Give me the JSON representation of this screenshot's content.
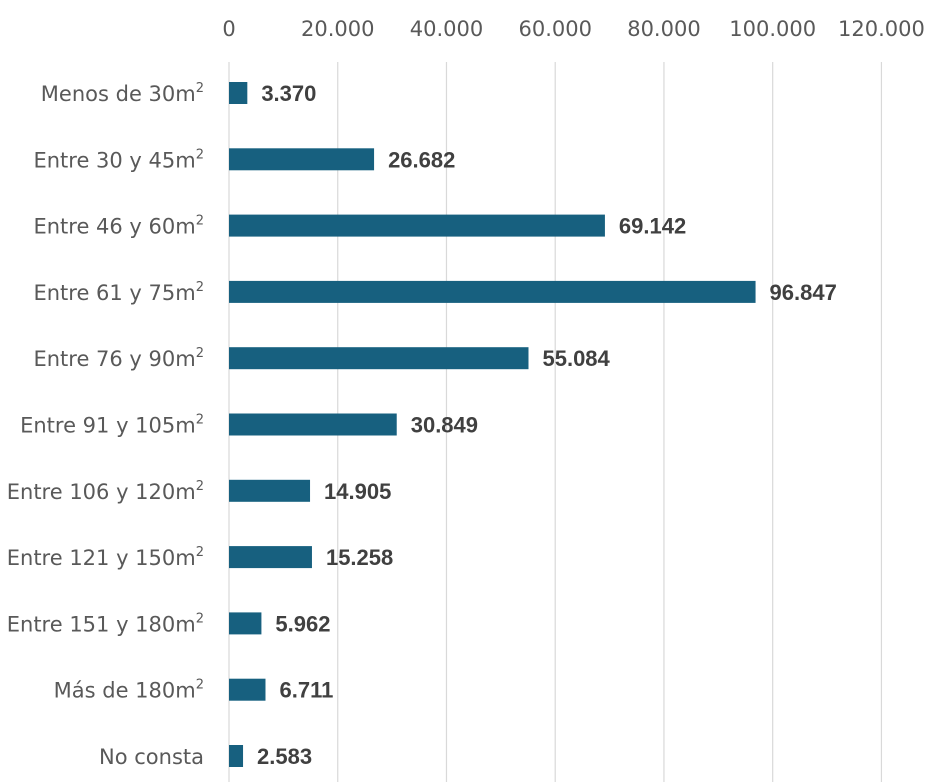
{
  "chart_data": {
    "type": "bar",
    "orientation": "horizontal",
    "categories": [
      {
        "label": "Menos de 30m",
        "sup": "2"
      },
      {
        "label": "Entre 30 y 45m",
        "sup": "2"
      },
      {
        "label": "Entre 46 y 60m",
        "sup": "2"
      },
      {
        "label": "Entre 61 y 75m",
        "sup": "2"
      },
      {
        "label": "Entre 76 y 90m",
        "sup": "2"
      },
      {
        "label": "Entre 91 y 105m",
        "sup": "2"
      },
      {
        "label": "Entre 106 y 120m",
        "sup": "2"
      },
      {
        "label": "Entre 121 y 150m",
        "sup": "2"
      },
      {
        "label": "Entre 151 y 180m",
        "sup": "2"
      },
      {
        "label": "Más de 180m",
        "sup": "2"
      },
      {
        "label": "No consta",
        "sup": ""
      }
    ],
    "values": [
      3370,
      26682,
      69142,
      96847,
      55084,
      30849,
      14905,
      15258,
      5962,
      6711,
      2583
    ],
    "value_labels": [
      "3.370",
      "26.682",
      "69.142",
      "96.847",
      "55.084",
      "30.849",
      "14.905",
      "15.258",
      "5.962",
      "6.711",
      "2.583"
    ],
    "x_ticks": [
      0,
      20000,
      40000,
      60000,
      80000,
      100000,
      120000
    ],
    "x_tick_labels": [
      "0",
      "20.000",
      "40.000",
      "60.000",
      "80.000",
      "100.000",
      "120.000"
    ],
    "xlim": [
      0,
      120000
    ],
    "x_axis_position": "top",
    "grid": "vertical",
    "legend": "none",
    "bar_color": "#17607f",
    "title": "",
    "xlabel": "",
    "ylabel": ""
  }
}
